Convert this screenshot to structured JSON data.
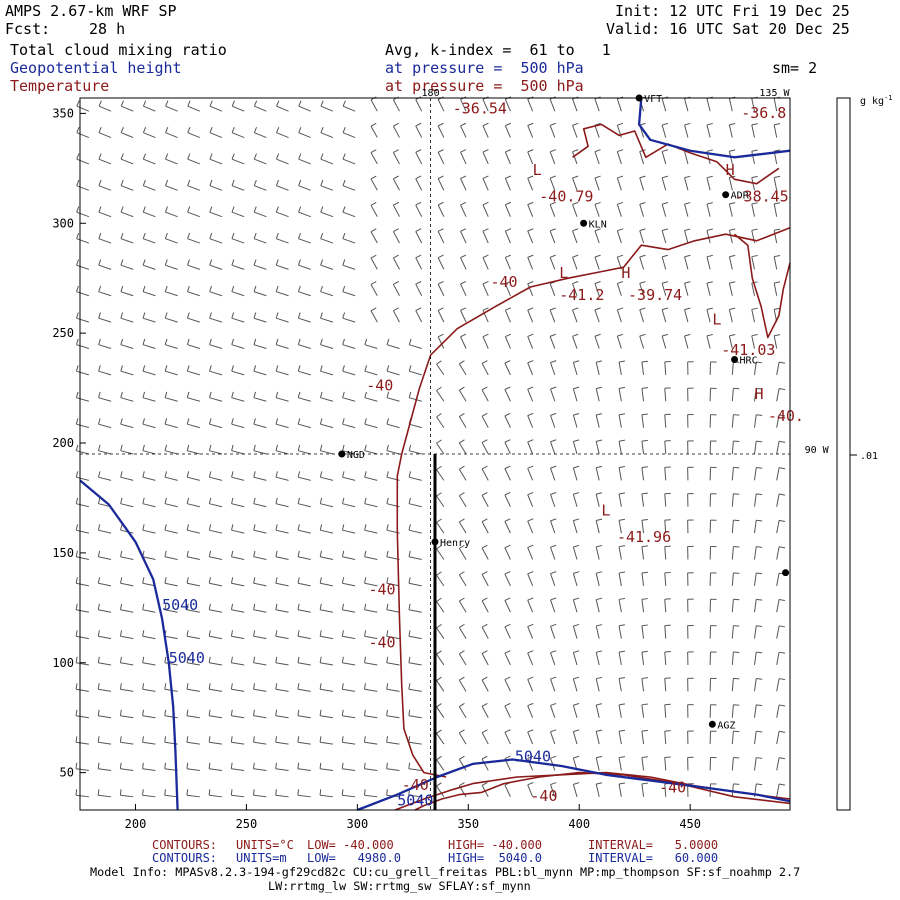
{
  "header": {
    "model": "AMPS 2.67-km WRF SP",
    "forecast_label": "Fcst:",
    "forecast_hours": "28 h",
    "init": "Init: 12 UTC Fri 19 Dec 25",
    "valid": "Valid: 16 UTC Sat 20 Dec 25",
    "field1": "Total cloud mixing ratio",
    "field2": "Geopotential height",
    "field3": "Temperature",
    "kindex": "Avg, k-index =  61 to   1",
    "pressure1": "at pressure =  500 hPa",
    "pressure2": "at pressure =  500 hPa",
    "sm": "sm= 2"
  },
  "colors": {
    "height_contour": "#1a2a9a",
    "temperature_contour": "#8b1a1a",
    "coast": "#1a2a9a",
    "barb": "#555555"
  },
  "chart_data": {
    "type": "contour_map",
    "title": "Total cloud mixing ratio / Geopotential height / Temperature at 500 hPa",
    "xlim": [
      175,
      495
    ],
    "ylim": [
      33,
      357
    ],
    "xticks": [
      200,
      250,
      300,
      350,
      400,
      450
    ],
    "yticks": [
      50,
      100,
      150,
      200,
      250,
      300,
      350
    ],
    "grid_labels": [
      {
        "text": "180",
        "x": 333,
        "y": 357
      },
      {
        "text": "135 W",
        "x": 488,
        "y": 357
      },
      {
        "text": "90 W",
        "x": 507,
        "y": 195
      }
    ],
    "guide_x": 333,
    "guide_y": 195,
    "section_line": {
      "x": 335,
      "y_from": 195,
      "y_to": 33
    },
    "stations": [
      {
        "name": "NGD",
        "x": 293,
        "y": 195
      },
      {
        "name": "Henry",
        "x": 335,
        "y": 155
      },
      {
        "name": "KLN",
        "x": 402,
        "y": 300
      },
      {
        "name": "HRC",
        "x": 470,
        "y": 238
      },
      {
        "name": "AGZ",
        "x": 460,
        "y": 72
      },
      {
        "name": "ADR",
        "x": 466,
        "y": 313
      },
      {
        "name": "VFT",
        "x": 427,
        "y": 357
      }
    ],
    "edge_station": {
      "x": 493,
      "y": 141
    },
    "temperature_labels": [
      {
        "text": "L",
        "x": 379,
        "y": 322
      },
      {
        "text": "-40.79",
        "x": 382,
        "y": 310
      },
      {
        "text": "L",
        "x": 391,
        "y": 275
      },
      {
        "text": "-41.2",
        "x": 391,
        "y": 265
      },
      {
        "text": "H",
        "x": 419,
        "y": 275
      },
      {
        "text": "-39.74",
        "x": 422,
        "y": 265
      },
      {
        "text": "H",
        "x": 466,
        "y": 322
      },
      {
        "text": "-38.45",
        "x": 470,
        "y": 310
      },
      {
        "text": "L",
        "x": 460,
        "y": 254
      },
      {
        "text": "-41.03",
        "x": 464,
        "y": 240
      },
      {
        "text": "H",
        "x": 479,
        "y": 220
      },
      {
        "text": "-40.",
        "x": 485,
        "y": 210
      },
      {
        "text": "L",
        "x": 410,
        "y": 167
      },
      {
        "text": "-41.96",
        "x": 417,
        "y": 155
      },
      {
        "text": "-36.54",
        "x": 343,
        "y": 350
      },
      {
        "text": "-36.8",
        "x": 473,
        "y": 348
      },
      {
        "text": "-40",
        "x": 360,
        "y": 271
      },
      {
        "text": "-40",
        "x": 304,
        "y": 224
      },
      {
        "text": "-40",
        "x": 305,
        "y": 131
      },
      {
        "text": "-40",
        "x": 305,
        "y": 107
      },
      {
        "text": "-40",
        "x": 320,
        "y": 42
      },
      {
        "text": "-40",
        "x": 378,
        "y": 37
      },
      {
        "text": "-40",
        "x": 436,
        "y": 41
      }
    ],
    "height_labels": [
      {
        "text": "5040",
        "x": 212,
        "y": 124
      },
      {
        "text": "5040",
        "x": 215,
        "y": 100
      },
      {
        "text": "5040",
        "x": 371,
        "y": 55
      },
      {
        "text": "5040",
        "x": 318,
        "y": 35
      }
    ],
    "temperature_contours": [
      [
        [
          317,
          33
        ],
        [
          330,
          38
        ],
        [
          342,
          42
        ],
        [
          352,
          45
        ],
        [
          372,
          48
        ],
        [
          392,
          49
        ],
        [
          412,
          50
        ],
        [
          432,
          48
        ],
        [
          452,
          44
        ],
        [
          472,
          41
        ],
        [
          495,
          38
        ]
      ],
      [
        [
          326,
          33
        ],
        [
          330,
          35
        ],
        [
          338,
          38
        ],
        [
          346,
          40
        ],
        [
          356,
          41
        ],
        [
          366,
          45
        ],
        [
          382,
          48
        ],
        [
          400,
          50
        ],
        [
          420,
          49
        ],
        [
          445,
          45
        ],
        [
          470,
          39
        ],
        [
          495,
          36
        ]
      ],
      [
        [
          340,
          48
        ],
        [
          330,
          50
        ],
        [
          325,
          58
        ],
        [
          321,
          70
        ],
        [
          320,
          90
        ],
        [
          319,
          120
        ],
        [
          318,
          160
        ],
        [
          318,
          185
        ],
        [
          320,
          195
        ],
        [
          324,
          210
        ],
        [
          328,
          225
        ],
        [
          333,
          240
        ],
        [
          345,
          252
        ],
        [
          362,
          262
        ],
        [
          378,
          271
        ],
        [
          395,
          275
        ],
        [
          410,
          278
        ],
        [
          420,
          280
        ],
        [
          428,
          290
        ],
        [
          440,
          288
        ],
        [
          452,
          292
        ],
        [
          466,
          295
        ],
        [
          480,
          292
        ],
        [
          495,
          298
        ]
      ],
      [
        [
          397,
          330
        ],
        [
          404,
          335
        ],
        [
          402,
          343
        ],
        [
          410,
          345
        ],
        [
          418,
          340
        ],
        [
          425,
          342
        ],
        [
          430,
          330
        ],
        [
          440,
          336
        ],
        [
          450,
          332
        ],
        [
          462,
          328
        ],
        [
          470,
          320
        ],
        [
          480,
          318
        ],
        [
          490,
          325
        ]
      ],
      [
        [
          470,
          295
        ],
        [
          476,
          290
        ],
        [
          478,
          275
        ],
        [
          482,
          262
        ],
        [
          485,
          248
        ],
        [
          490,
          258
        ],
        [
          492,
          270
        ],
        [
          495,
          282
        ]
      ]
    ],
    "height_contours": [
      [
        [
          175,
          183
        ],
        [
          188,
          172
        ],
        [
          200,
          155
        ],
        [
          208,
          138
        ],
        [
          212,
          120
        ],
        [
          215,
          100
        ],
        [
          217,
          80
        ],
        [
          218,
          60
        ],
        [
          219,
          33
        ]
      ],
      [
        [
          300,
          33
        ],
        [
          318,
          40
        ],
        [
          336,
          48
        ],
        [
          352,
          54
        ],
        [
          370,
          56
        ],
        [
          392,
          53
        ],
        [
          412,
          49
        ],
        [
          435,
          46
        ],
        [
          458,
          43
        ],
        [
          480,
          40
        ],
        [
          495,
          37
        ]
      ],
      [
        [
          428,
          357
        ],
        [
          427,
          345
        ],
        [
          432,
          338
        ],
        [
          450,
          333
        ],
        [
          470,
          330
        ],
        [
          495,
          333
        ]
      ]
    ],
    "barbs": {
      "spacing_x": 10,
      "spacing_y": 12
    },
    "colorbar": {
      "units": "g kg",
      "units_sup": "-1",
      "tick_label": ".01",
      "tick_value": 0.01
    }
  },
  "footer": {
    "row1_label": "CONTOURS:",
    "row1_units": "UNITS=°C",
    "row1_low": "LOW= -40.000",
    "row1_high": "HIGH= -40.000",
    "row1_interval": "INTERVAL=   5.0000",
    "row2_label": "CONTOURS:",
    "row2_units": "UNITS=m",
    "row2_low": "LOW=   4980.0",
    "row2_high": "HIGH=  5040.0",
    "row2_interval": "INTERVAL=   60.000",
    "model_info": "Model Info: MPASv8.2.3-194-gf29cd82c CU:cu_grell_freitas PBL:bl_mynn MP:mp_thompson SF:sf_noahmp 2.7",
    "model_info2": "LW:rrtmg_lw SW:rrtmg_sw SFLAY:sf_mynn"
  }
}
